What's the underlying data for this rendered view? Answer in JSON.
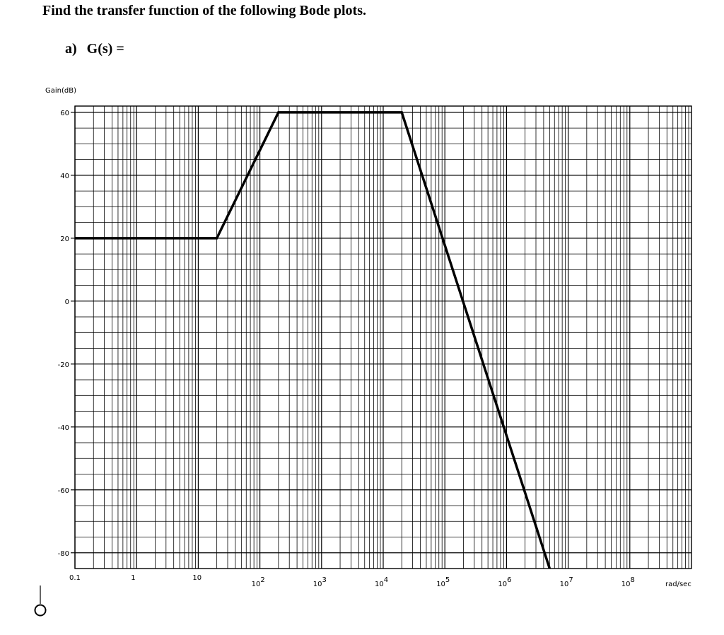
{
  "heading": "Find the transfer function of the following Bode plots.",
  "question": {
    "label": "a)",
    "text": "G(s) ="
  },
  "chart_data": {
    "type": "line",
    "title": "",
    "xlabel": "rad/sec",
    "ylabel": "Gain(dB)",
    "xscale": "log",
    "xlim": [
      0.1,
      1000000000
    ],
    "ylim": [
      -85,
      62
    ],
    "grid": true,
    "line_color": "#000000",
    "yticks": [
      {
        "value": 60,
        "label": "60"
      },
      {
        "value": 40,
        "label": "40"
      },
      {
        "value": 20,
        "label": "20"
      },
      {
        "value": 0,
        "label": "0"
      },
      {
        "value": -20,
        "label": "-20"
      },
      {
        "value": -40,
        "label": "-40"
      },
      {
        "value": -60,
        "label": "-60"
      },
      {
        "value": -80,
        "label": "-80"
      }
    ],
    "xticks": [
      {
        "value": 0.1,
        "base": "0.1",
        "exp": ""
      },
      {
        "value": 1,
        "base": "1",
        "exp": ""
      },
      {
        "value": 10,
        "base": "10",
        "exp": ""
      },
      {
        "value": 100,
        "base": "10",
        "exp": "2"
      },
      {
        "value": 1000,
        "base": "10",
        "exp": "3"
      },
      {
        "value": 10000,
        "base": "10",
        "exp": "4"
      },
      {
        "value": 100000,
        "base": "10",
        "exp": "5"
      },
      {
        "value": 1000000,
        "base": "10",
        "exp": "6"
      },
      {
        "value": 10000000,
        "base": "10",
        "exp": "7"
      },
      {
        "value": 100000000,
        "base": "10",
        "exp": "8"
      }
    ],
    "series": [
      {
        "points": [
          {
            "x": 0.1,
            "y": 20
          },
          {
            "x": 20,
            "y": 20
          },
          {
            "x": 200,
            "y": 60
          },
          {
            "x": 20000,
            "y": 60
          },
          {
            "x": 5000000,
            "y": -85
          }
        ]
      }
    ]
  }
}
